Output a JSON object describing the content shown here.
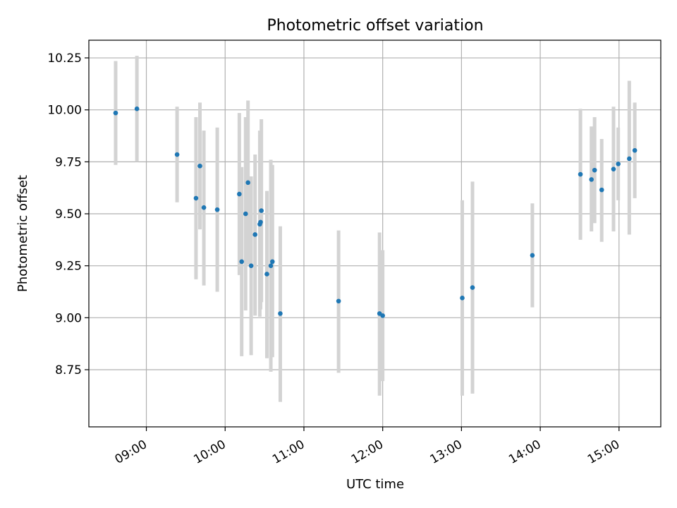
{
  "chart_data": {
    "type": "scatter",
    "title": "Photometric offset variation",
    "xlabel": "UTC time",
    "ylabel": "Photometric offset",
    "grid": true,
    "xlim_hours": [
      8.27,
      15.53
    ],
    "ylim": [
      8.475,
      10.335
    ],
    "x_ticks": [
      {
        "value": 9,
        "label": "09:00"
      },
      {
        "value": 10,
        "label": "10:00"
      },
      {
        "value": 11,
        "label": "11:00"
      },
      {
        "value": 12,
        "label": "12:00"
      },
      {
        "value": 13,
        "label": "13:00"
      },
      {
        "value": 14,
        "label": "14:00"
      },
      {
        "value": 15,
        "label": "15:00"
      }
    ],
    "y_ticks": [
      {
        "value": 8.75,
        "label": "8.75"
      },
      {
        "value": 9.0,
        "label": "9.00"
      },
      {
        "value": 9.25,
        "label": "9.25"
      },
      {
        "value": 9.5,
        "label": "9.50"
      },
      {
        "value": 9.75,
        "label": "9.75"
      },
      {
        "value": 10.0,
        "label": "10.00"
      },
      {
        "value": 10.25,
        "label": "10.25"
      }
    ],
    "point_color": "#1f77b4",
    "errorbar_color": "#d3d3d3",
    "points": [
      {
        "t": 8.61,
        "y": 9.985,
        "lo": 9.735,
        "hi": 10.235
      },
      {
        "t": 8.88,
        "y": 10.005,
        "lo": 9.75,
        "hi": 10.26
      },
      {
        "t": 9.39,
        "y": 9.785,
        "lo": 9.555,
        "hi": 10.015
      },
      {
        "t": 9.63,
        "y": 9.575,
        "lo": 9.185,
        "hi": 9.965
      },
      {
        "t": 9.68,
        "y": 9.73,
        "lo": 9.425,
        "hi": 10.035
      },
      {
        "t": 9.73,
        "y": 9.53,
        "lo": 9.155,
        "hi": 9.9
      },
      {
        "t": 9.9,
        "y": 9.52,
        "lo": 9.125,
        "hi": 9.915
      },
      {
        "t": 10.18,
        "y": 9.595,
        "lo": 9.205,
        "hi": 9.985
      },
      {
        "t": 10.21,
        "y": 9.27,
        "lo": 8.815,
        "hi": 9.725
      },
      {
        "t": 10.26,
        "y": 9.5,
        "lo": 9.035,
        "hi": 9.965
      },
      {
        "t": 10.29,
        "y": 9.65,
        "lo": 9.255,
        "hi": 10.045
      },
      {
        "t": 10.33,
        "y": 9.25,
        "lo": 8.82,
        "hi": 9.68
      },
      {
        "t": 10.38,
        "y": 9.4,
        "lo": 9.01,
        "hi": 9.785
      },
      {
        "t": 10.44,
        "y": 9.45,
        "lo": 9.005,
        "hi": 9.9
      },
      {
        "t": 10.45,
        "y": 9.46,
        "lo": 9.04,
        "hi": 9.88
      },
      {
        "t": 10.46,
        "y": 9.515,
        "lo": 9.075,
        "hi": 9.955
      },
      {
        "t": 10.53,
        "y": 9.21,
        "lo": 8.805,
        "hi": 9.61
      },
      {
        "t": 10.58,
        "y": 9.25,
        "lo": 8.74,
        "hi": 9.76
      },
      {
        "t": 10.6,
        "y": 9.27,
        "lo": 8.81,
        "hi": 9.735
      },
      {
        "t": 10.7,
        "y": 9.02,
        "lo": 8.595,
        "hi": 9.44
      },
      {
        "t": 11.44,
        "y": 9.08,
        "lo": 8.735,
        "hi": 9.42
      },
      {
        "t": 11.96,
        "y": 9.02,
        "lo": 8.625,
        "hi": 9.41
      },
      {
        "t": 12.0,
        "y": 9.01,
        "lo": 8.695,
        "hi": 9.325
      },
      {
        "t": 13.01,
        "y": 9.095,
        "lo": 8.625,
        "hi": 9.565
      },
      {
        "t": 13.14,
        "y": 9.145,
        "lo": 8.635,
        "hi": 9.655
      },
      {
        "t": 13.9,
        "y": 9.3,
        "lo": 9.05,
        "hi": 9.55
      },
      {
        "t": 14.51,
        "y": 9.69,
        "lo": 9.375,
        "hi": 10.005
      },
      {
        "t": 14.65,
        "y": 9.665,
        "lo": 9.415,
        "hi": 9.92
      },
      {
        "t": 14.69,
        "y": 9.71,
        "lo": 9.455,
        "hi": 9.965
      },
      {
        "t": 14.78,
        "y": 9.615,
        "lo": 9.365,
        "hi": 9.86
      },
      {
        "t": 14.93,
        "y": 9.715,
        "lo": 9.415,
        "hi": 10.015
      },
      {
        "t": 14.99,
        "y": 9.74,
        "lo": 9.565,
        "hi": 9.915
      },
      {
        "t": 15.13,
        "y": 9.765,
        "lo": 9.4,
        "hi": 10.14
      },
      {
        "t": 15.2,
        "y": 9.805,
        "lo": 9.575,
        "hi": 10.035
      }
    ]
  }
}
